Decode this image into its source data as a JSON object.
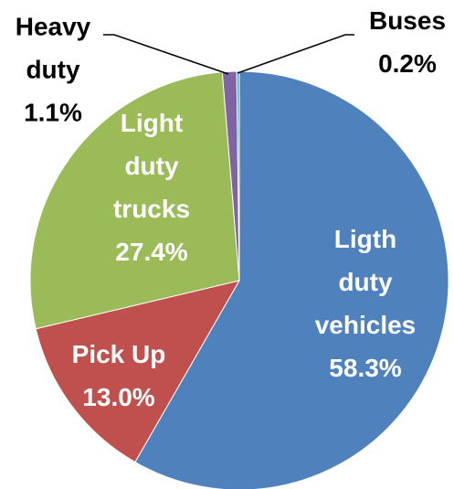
{
  "chart_data": {
    "type": "pie",
    "categories": [
      "Ligth duty vehicles",
      "Pick Up",
      "Light duty trucks",
      "Heavy duty",
      "Buses"
    ],
    "values": [
      58.3,
      13.0,
      27.4,
      1.1,
      0.2
    ],
    "value_labels": [
      "58.3%",
      "13.0%",
      "27.4%",
      "1.1%",
      "0.2%"
    ],
    "colors": [
      "#4f81bd",
      "#c0504d",
      "#9bbb59",
      "#8064a2",
      "#4bacc6"
    ]
  }
}
